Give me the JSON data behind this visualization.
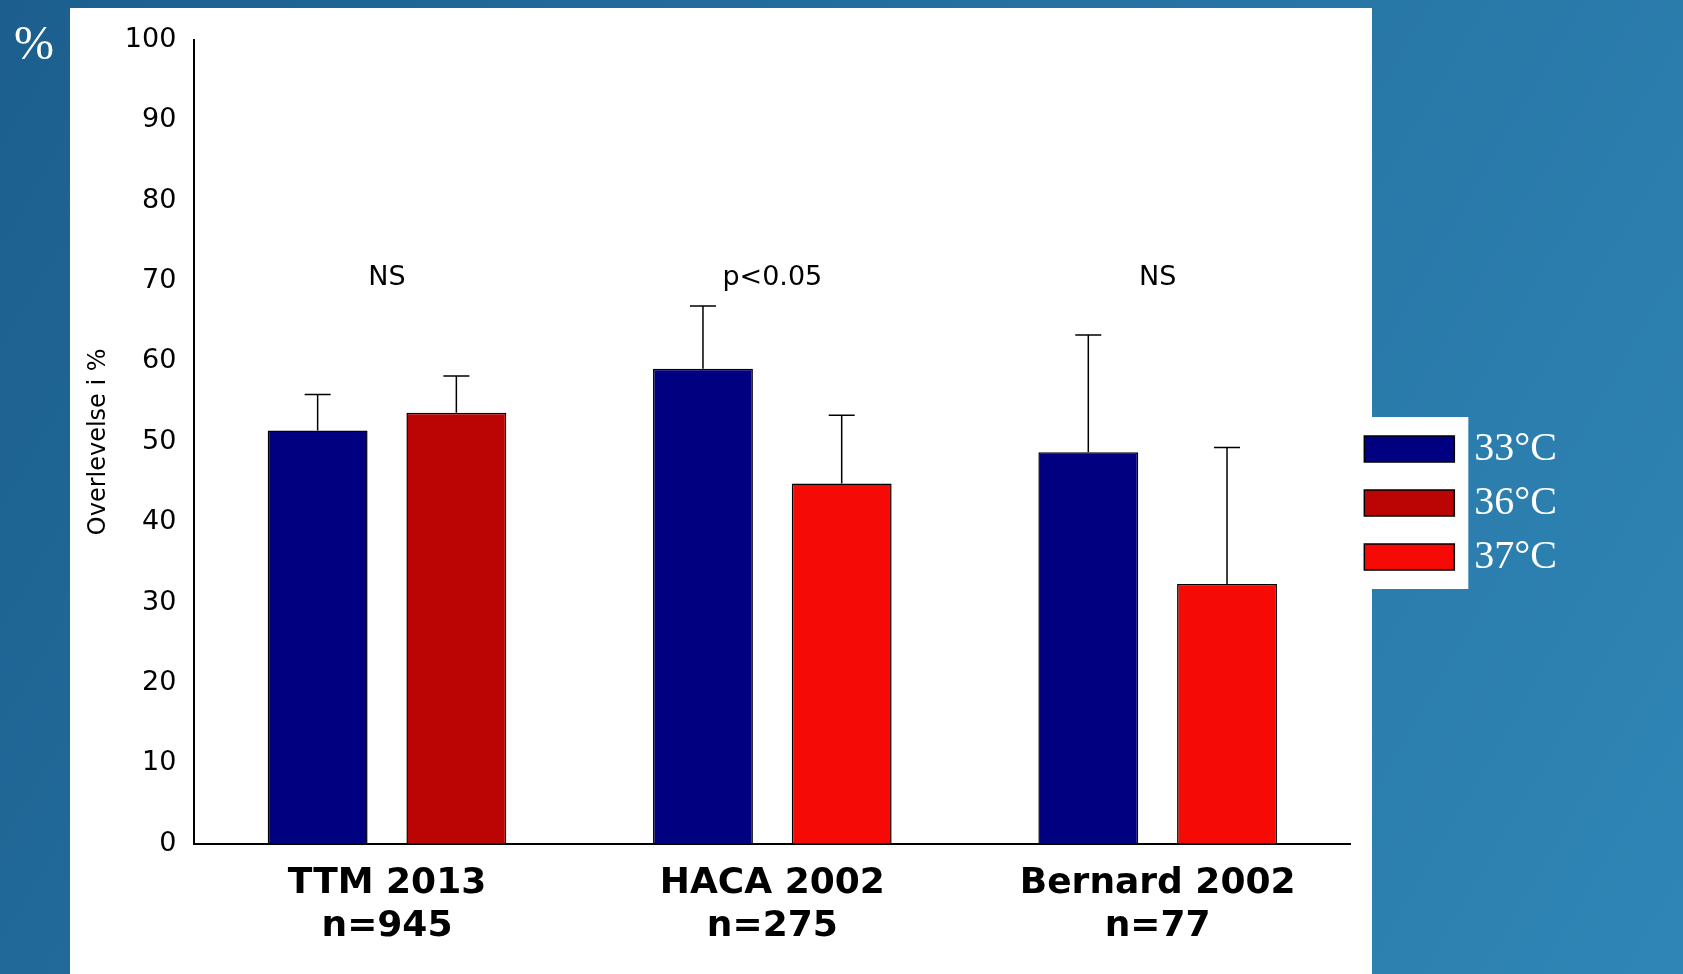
{
  "chart_data": {
    "type": "bar",
    "ylabel": "Overlevelse i %",
    "categories": [
      "TTM 2013\nn=945",
      "HACA 2002\nn=275",
      "Bernard 2002\nn=77"
    ],
    "series": [
      {
        "name": "33°C",
        "color": "#000080",
        "values": [
          51.4,
          59.1,
          48.7
        ],
        "errors": [
          [
            51.4,
            55.9
          ],
          [
            59.1,
            66.9
          ],
          [
            48.7,
            63.3
          ]
        ]
      },
      {
        "name": "36°C",
        "color": "#bb0505",
        "values": [
          53.6,
          null,
          null
        ],
        "errors": [
          [
            53.6,
            58.2
          ],
          null,
          null
        ]
      },
      {
        "name": "37°C",
        "color": "#f50a05",
        "values": [
          null,
          44.8,
          32.3
        ],
        "errors": [
          null,
          [
            44.8,
            53.3
          ],
          [
            32.3,
            49.3
          ]
        ]
      }
    ],
    "ylim": [
      0,
      100
    ],
    "yticks": [
      0,
      10,
      20,
      30,
      40,
      50,
      60,
      70,
      80,
      90,
      100
    ],
    "grid": false,
    "legend": "right",
    "annotations": [
      "%",
      "NS",
      "p<0.05",
      "NS"
    ]
  }
}
